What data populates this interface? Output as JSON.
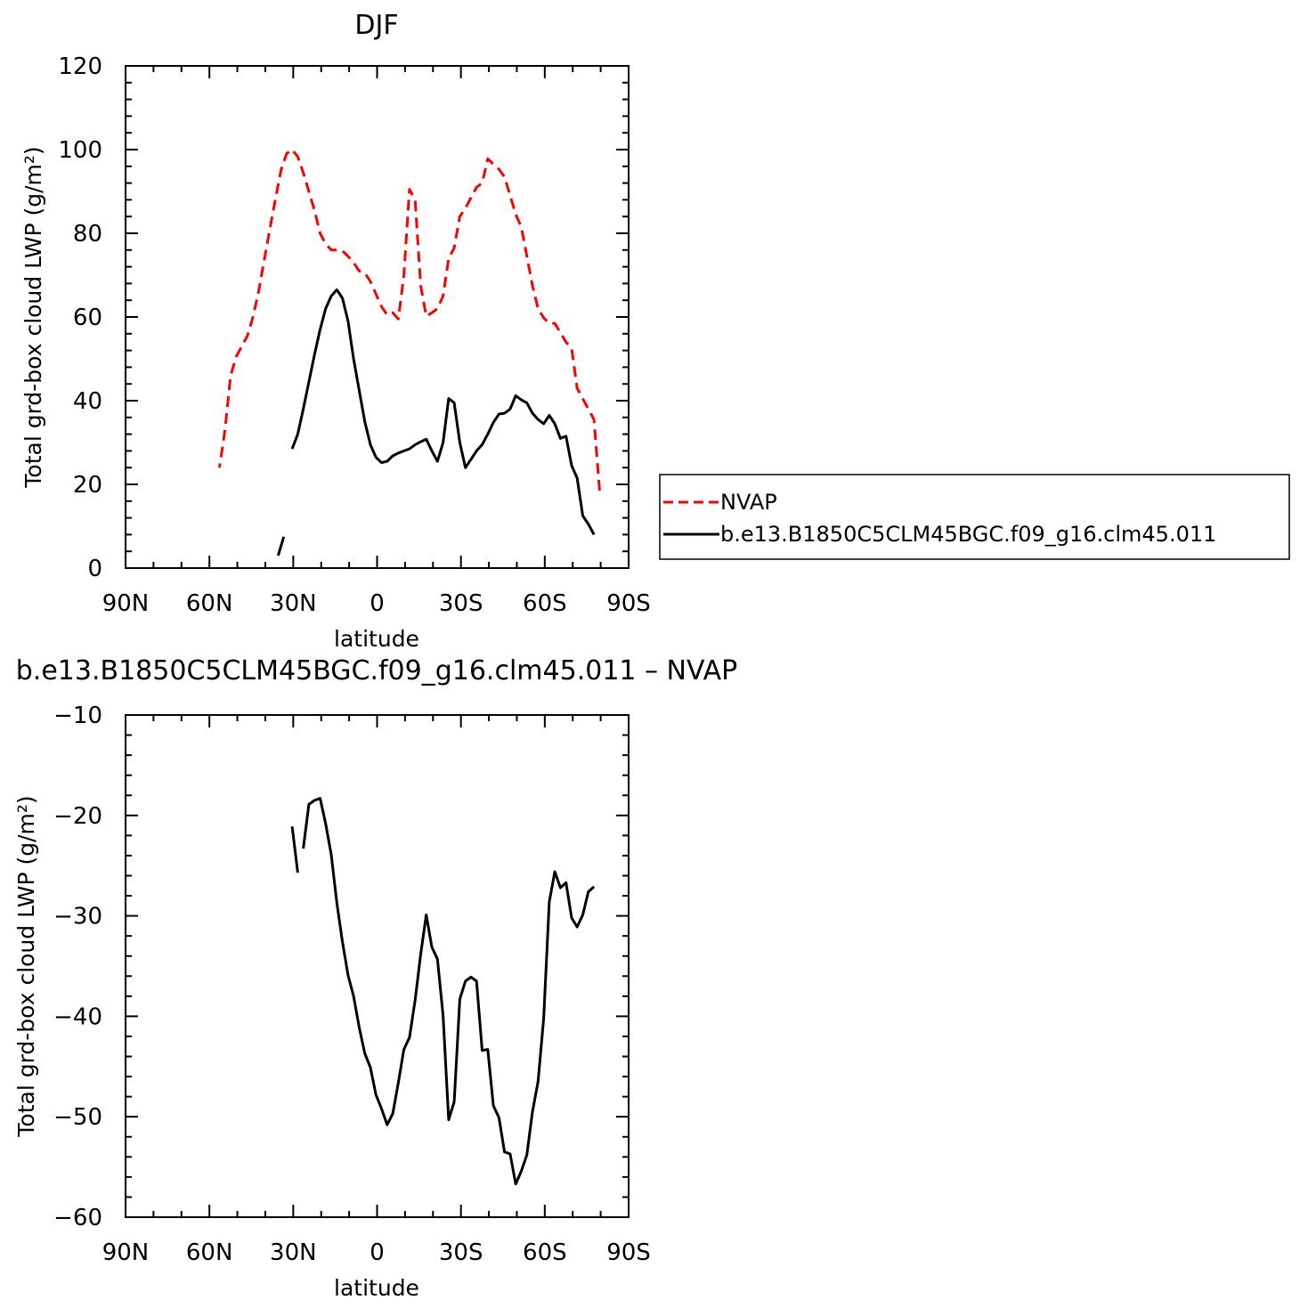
{
  "chart_data": [
    {
      "type": "line",
      "title": "DJF",
      "xlabel": "latitude",
      "ylabel": "Total grd-box cloud LWP (g/m²)",
      "xlim": [
        90,
        -90
      ],
      "ylim": [
        0,
        120
      ],
      "xticks": [
        90,
        60,
        30,
        0,
        -30,
        -60,
        -90
      ],
      "xtick_labels": [
        "90N",
        "60N",
        "30N",
        "0",
        "30S",
        "60S",
        "90S"
      ],
      "yticks": [
        0,
        20,
        40,
        60,
        80,
        100,
        120
      ],
      "ytick_labels": [
        "0",
        "20",
        "40",
        "60",
        "80",
        "100",
        "120"
      ],
      "legend_placement": "right",
      "series": [
        {
          "name": "NVAP",
          "color": "#ff0000",
          "style": "dashed",
          "segments": [
            [
              [
                -79.6,
                18.5
              ],
              [
                -77.6,
                35.5
              ],
              [
                -71.6,
                43
              ],
              [
                -69.6,
                52.5
              ],
              [
                -67.6,
                54
              ],
              [
                -63.6,
                58.5
              ],
              [
                -61.6,
                58.5
              ],
              [
                -59.6,
                59.8
              ],
              [
                -57.6,
                62
              ],
              [
                -55.6,
                67.5
              ],
              [
                -51.6,
                81.5
              ],
              [
                -49.6,
                84.5
              ],
              [
                -47.6,
                89
              ],
              [
                -45.6,
                93.5
              ],
              [
                -43.6,
                95.3
              ],
              [
                -41.6,
                96.5
              ],
              [
                -39.6,
                97.8
              ],
              [
                -37.6,
                92
              ],
              [
                -35.6,
                91
              ],
              [
                -33.6,
                88.5
              ],
              [
                -31.6,
                86
              ],
              [
                -29.6,
                84
              ],
              [
                -27.6,
                76.5
              ],
              [
                -25.6,
                74
              ],
              [
                -23.6,
                65
              ],
              [
                -21.6,
                62
              ],
              [
                -19.6,
                61
              ],
              [
                -17.6,
                60.2
              ],
              [
                -15.6,
                67.5
              ],
              [
                -13.6,
                88
              ],
              [
                -11.6,
                90.5
              ],
              [
                -9.6,
                70
              ],
              [
                -7.6,
                59.5
              ],
              [
                -5.6,
                61
              ],
              [
                -3.6,
                60.5
              ],
              [
                -1.6,
                62.5
              ],
              [
                2.4,
                68.5
              ],
              [
                4.4,
                70.5
              ],
              [
                6.4,
                71
              ],
              [
                8.4,
                73
              ],
              [
                10.4,
                74.5
              ],
              [
                12.4,
                75.8
              ],
              [
                14.4,
                76
              ],
              [
                16.4,
                76
              ],
              [
                18.4,
                77.5
              ],
              [
                20.4,
                80
              ],
              [
                22.4,
                85.5
              ],
              [
                24.4,
                90
              ],
              [
                26.4,
                94.5
              ],
              [
                28.4,
                98.3
              ],
              [
                30.4,
                100
              ],
              [
                32.4,
                99
              ],
              [
                34.4,
                95
              ],
              [
                36.4,
                88
              ],
              [
                38.4,
                81
              ],
              [
                40.4,
                73.5
              ],
              [
                42.4,
                66
              ],
              [
                44.4,
                60
              ],
              [
                46.4,
                55.5
              ],
              [
                48.4,
                53
              ],
              [
                50.4,
                50.5
              ],
              [
                52.4,
                46
              ],
              [
                54.4,
                33
              ],
              [
                56.4,
                24
              ]
            ]
          ]
        },
        {
          "name": "b.e13.B1850C5CLM45BGC.f09_g16.clm45.011",
          "color": "#000000",
          "style": "solid",
          "segments": [
            [
              [
                -77.6,
                8
              ],
              [
                -75.6,
                10.5
              ],
              [
                -73.6,
                12.5
              ],
              [
                -71.6,
                21.5
              ],
              [
                -69.6,
                24.5
              ],
              [
                -67.6,
                31.5
              ],
              [
                -65.6,
                31
              ],
              [
                -63.6,
                34.5
              ],
              [
                -61.6,
                36.5
              ],
              [
                -59.6,
                34.5
              ],
              [
                -57.6,
                35.5
              ],
              [
                -55.6,
                37
              ],
              [
                -53.6,
                39.5
              ],
              [
                -51.6,
                40.2
              ],
              [
                -49.6,
                41.2
              ],
              [
                -47.6,
                38
              ],
              [
                -45.6,
                37
              ],
              [
                -43.6,
                36.8
              ],
              [
                -41.6,
                34.8
              ],
              [
                -39.6,
                32
              ],
              [
                -37.6,
                29.5
              ],
              [
                -35.6,
                28
              ],
              [
                -33.6,
                26
              ],
              [
                -31.6,
                24
              ],
              [
                -29.6,
                30
              ],
              [
                -27.6,
                39.5
              ],
              [
                -25.6,
                40.5
              ],
              [
                -23.6,
                30
              ],
              [
                -21.6,
                25.5
              ],
              [
                -19.6,
                28
              ],
              [
                -17.6,
                30.8
              ],
              [
                -15.6,
                30.2
              ],
              [
                -13.6,
                29.5
              ],
              [
                -11.6,
                28.5
              ],
              [
                -9.6,
                28
              ],
              [
                -7.6,
                27.5
              ],
              [
                -5.6,
                26.8
              ],
              [
                -3.6,
                25.5
              ],
              [
                -1.6,
                25.2
              ],
              [
                0.4,
                26.5
              ],
              [
                2.4,
                29.5
              ],
              [
                4.4,
                35
              ],
              [
                6.4,
                42.5
              ],
              [
                8.4,
                50
              ],
              [
                10.4,
                59
              ],
              [
                12.4,
                64.5
              ],
              [
                14.4,
                66.5
              ],
              [
                16.4,
                65
              ],
              [
                18.4,
                62
              ],
              [
                20.4,
                57
              ],
              [
                22.4,
                51
              ],
              [
                24.4,
                44.5
              ],
              [
                26.4,
                38
              ],
              [
                28.4,
                32
              ],
              [
                30.4,
                28.5
              ]
            ],
            [
              [
                33.4,
                7.5
              ],
              [
                35.4,
                3
              ]
            ]
          ]
        }
      ]
    },
    {
      "type": "line",
      "title": "b.e13.B1850C5CLM45BGC.f09_g16.clm45.011 – NVAP",
      "xlabel": "latitude",
      "ylabel": "Total grd-box cloud LWP (g/m²)",
      "xlim": [
        90,
        -90
      ],
      "ylim": [
        -60,
        -10
      ],
      "xticks": [
        90,
        60,
        30,
        0,
        -30,
        -60,
        -90
      ],
      "xtick_labels": [
        "90N",
        "60N",
        "30N",
        "0",
        "30S",
        "60S",
        "90S"
      ],
      "yticks": [
        -60,
        -50,
        -40,
        -30,
        -20,
        -10
      ],
      "ytick_labels": [
        "−60",
        "−50",
        "−40",
        "−30",
        "−20",
        "−10"
      ],
      "series": [
        {
          "color": "#000000",
          "style": "solid",
          "segments": [
            [
              [
                -77.6,
                -27.1
              ],
              [
                -75.6,
                -27.6
              ],
              [
                -73.6,
                -29.9
              ],
              [
                -71.6,
                -31.1
              ],
              [
                -69.6,
                -30.2
              ],
              [
                -67.6,
                -26.7
              ],
              [
                -65.6,
                -27.2
              ],
              [
                -63.6,
                -25.6
              ],
              [
                -61.6,
                -28.6
              ],
              [
                -59.6,
                -40.2
              ],
              [
                -57.6,
                -46.5
              ],
              [
                -55.6,
                -49.5
              ],
              [
                -53.6,
                -53.8
              ],
              [
                -51.6,
                -55.4
              ],
              [
                -49.6,
                -56.7
              ],
              [
                -47.6,
                -53.7
              ],
              [
                -45.6,
                -53.5
              ],
              [
                -43.6,
                -50.1
              ],
              [
                -41.6,
                -48.9
              ],
              [
                -39.6,
                -43.3
              ],
              [
                -37.6,
                -43.4
              ],
              [
                -35.6,
                -36.5
              ],
              [
                -33.6,
                -36.1
              ],
              [
                -31.6,
                -36.5
              ],
              [
                -29.6,
                -38.3
              ],
              [
                -27.6,
                -48.5
              ],
              [
                -25.6,
                -50.3
              ],
              [
                -23.6,
                -39.9
              ],
              [
                -21.6,
                -34.3
              ],
              [
                -19.6,
                -33.1
              ],
              [
                -17.6,
                -29.9
              ],
              [
                -15.6,
                -33.8
              ],
              [
                -13.6,
                -38.4
              ],
              [
                -11.6,
                -42.1
              ],
              [
                -9.6,
                -43.3
              ],
              [
                -7.6,
                -46.6
              ],
              [
                -5.6,
                -49.7
              ],
              [
                -3.6,
                -50.8
              ],
              [
                -1.6,
                -49.2
              ],
              [
                0.4,
                -47.8
              ],
              [
                2.4,
                -45.1
              ],
              [
                4.4,
                -43.7
              ],
              [
                6.4,
                -41.1
              ],
              [
                8.4,
                -38
              ],
              [
                10.4,
                -35.9
              ],
              [
                12.4,
                -32.6
              ],
              [
                14.4,
                -28.7
              ],
              [
                16.4,
                -23.9
              ],
              [
                18.4,
                -20.8
              ],
              [
                20.4,
                -18.3
              ],
              [
                22.4,
                -18.5
              ],
              [
                24.4,
                -18.9
              ],
              [
                26.4,
                -23.3
              ]
            ],
            [
              [
                28.4,
                -25.7
              ],
              [
                30.4,
                -21.1
              ]
            ]
          ]
        }
      ]
    }
  ]
}
